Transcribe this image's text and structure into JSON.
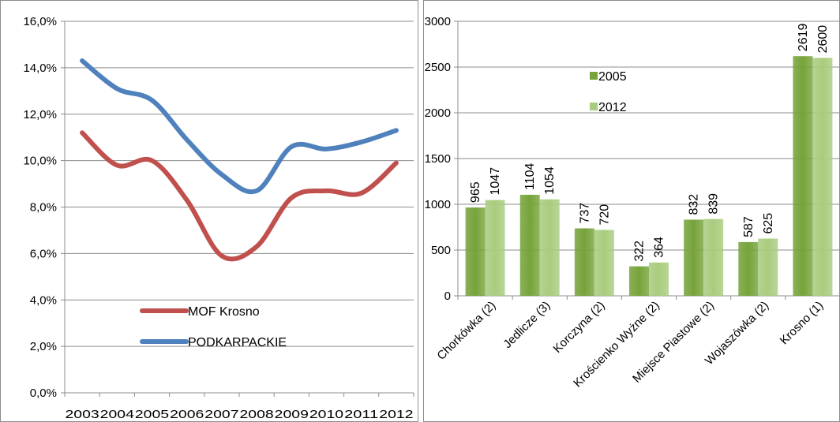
{
  "chart_data": [
    {
      "type": "line",
      "x": [
        "2003",
        "2004",
        "2005",
        "2006",
        "2007",
        "2008",
        "2009",
        "2010",
        "2011",
        "2012"
      ],
      "series": [
        {
          "name": "MOF Krosno",
          "values": [
            11.2,
            9.8,
            10.0,
            8.3,
            5.9,
            6.3,
            8.4,
            8.7,
            8.6,
            9.9
          ]
        },
        {
          "name": "PODKARPACKIE",
          "values": [
            14.3,
            13.1,
            12.6,
            10.9,
            9.4,
            8.7,
            10.6,
            10.5,
            10.8,
            11.3
          ]
        }
      ],
      "ylim": [
        0,
        16
      ],
      "yticks": [
        "0,0%",
        "2,0%",
        "4,0%",
        "6,0%",
        "8,0%",
        "10,0%",
        "12,0%",
        "14,0%",
        "16,0%"
      ],
      "grid": true,
      "colors": [
        "#c0504d",
        "#4f81bd"
      ],
      "legend": "inside-bottom-center"
    },
    {
      "type": "bar",
      "categories": [
        "Chorkówka (2)",
        "Jedlicze (3)",
        "Korczyna (2)",
        "Krościenko Wyżne (2)",
        "Miejsce Piastowe (2)",
        "Wojaszówka (2)",
        "Krosno (1)"
      ],
      "series": [
        {
          "name": "2005",
          "values": [
            965,
            1104,
            737,
            322,
            832,
            587,
            2619
          ]
        },
        {
          "name": "2012",
          "values": [
            1047,
            1054,
            720,
            364,
            839,
            625,
            2600
          ]
        }
      ],
      "ylim": [
        0,
        3000
      ],
      "yticks": [
        "0",
        "500",
        "1000",
        "1500",
        "2000",
        "2500",
        "3000"
      ],
      "grid": true,
      "colors": [
        "#76a33a",
        "#a9cc7e"
      ],
      "legend": "top-center"
    }
  ]
}
